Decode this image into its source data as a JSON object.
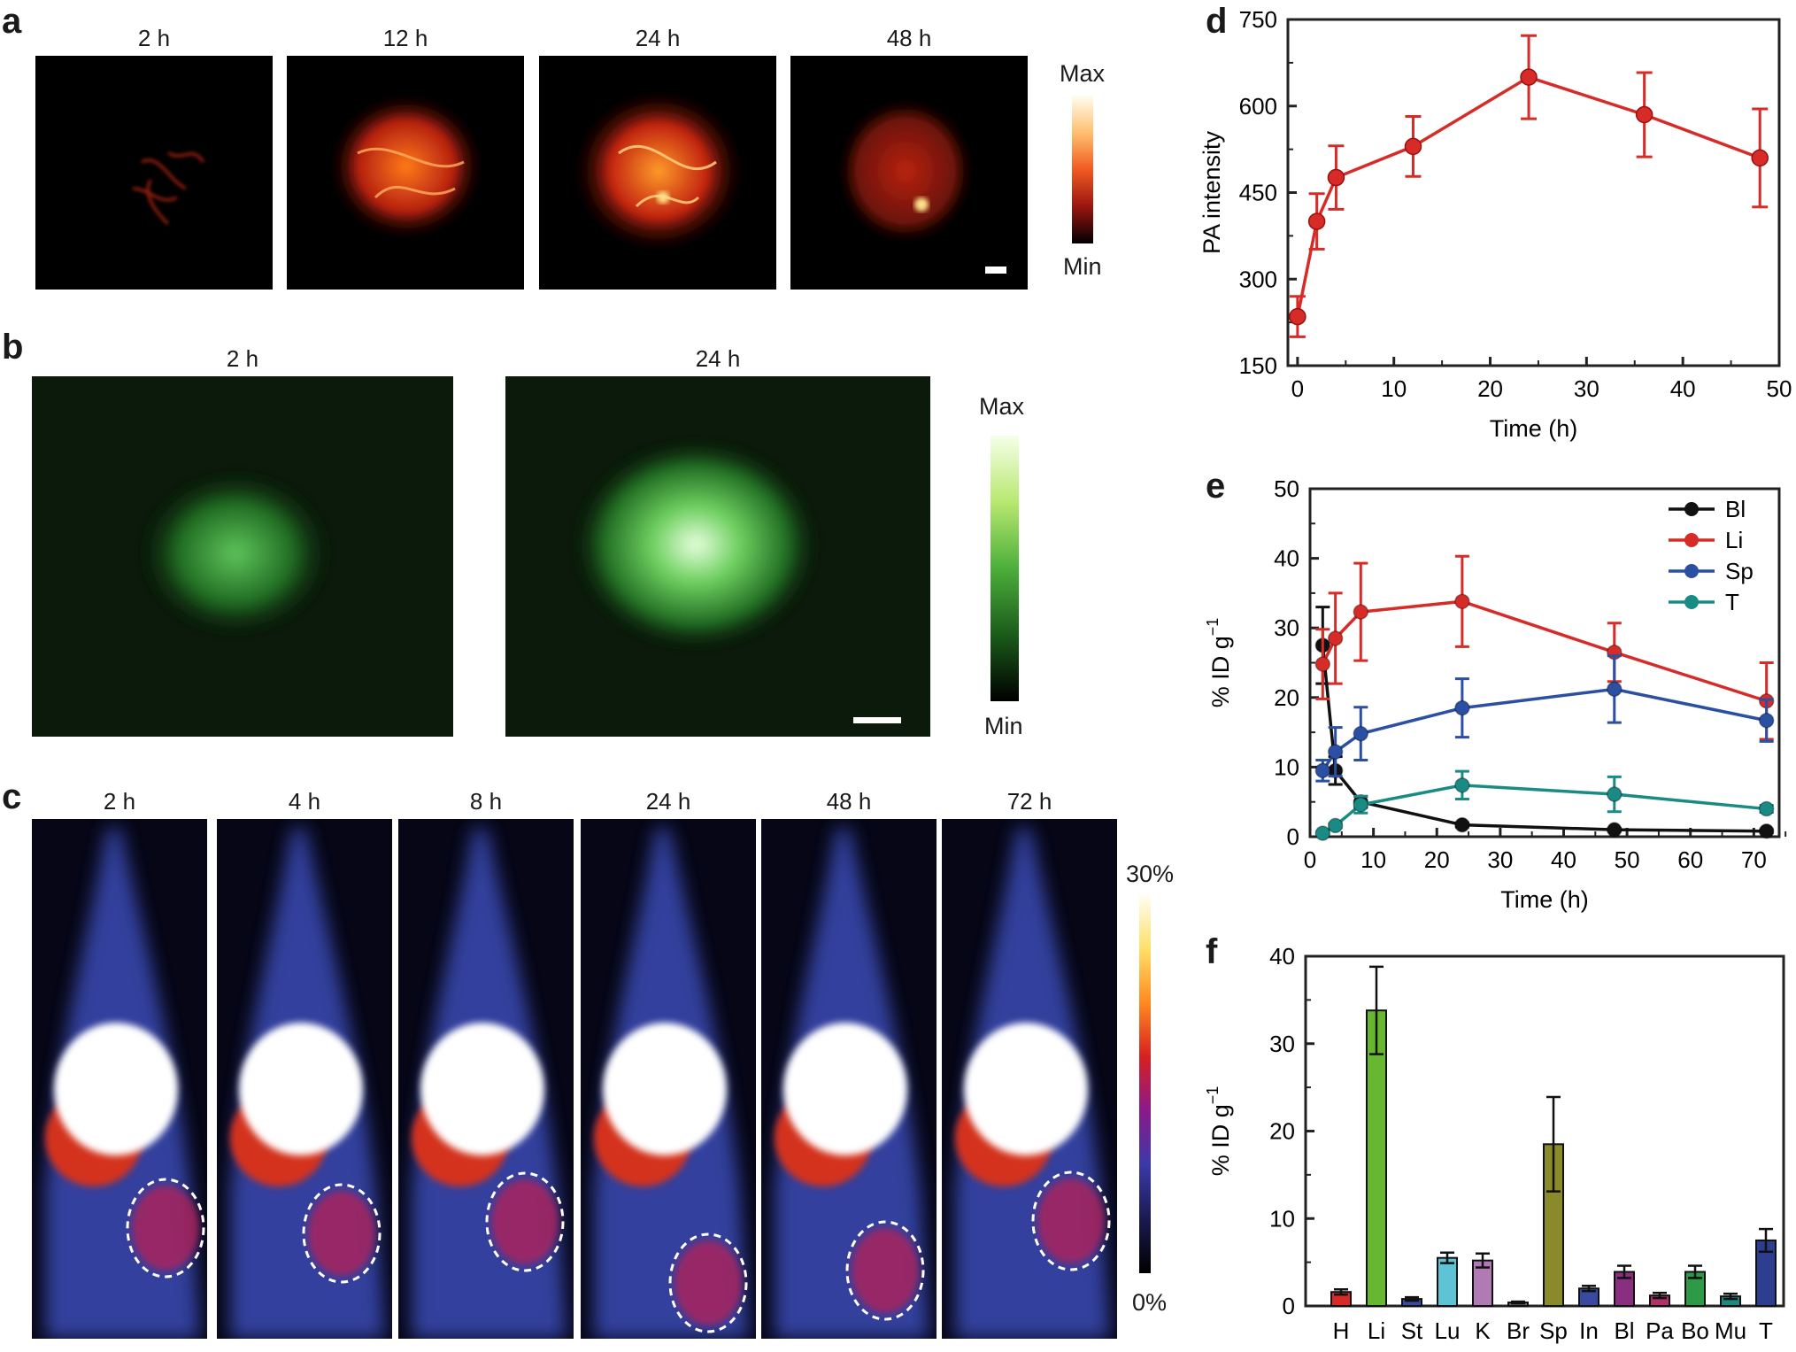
{
  "panel_a": {
    "letter": "a",
    "times": [
      "2 h",
      "12 h",
      "24 h",
      "48 h"
    ],
    "colorbar": {
      "max": "Max",
      "min": "Min"
    }
  },
  "panel_b": {
    "letter": "b",
    "times": [
      "2 h",
      "24 h"
    ],
    "colorbar": {
      "max": "Max",
      "min": "Min"
    }
  },
  "panel_c": {
    "letter": "c",
    "times": [
      "2 h",
      "4 h",
      "8 h",
      "24 h",
      "48 h",
      "72 h"
    ],
    "colorbar": {
      "max": "30%",
      "min": "0%"
    }
  },
  "chart_data": [
    {
      "panel": "d",
      "type": "line",
      "xlabel": "Time (h)",
      "ylabel": "PA intensity",
      "xlim": [
        -1,
        50
      ],
      "ylim": [
        150,
        750
      ],
      "xticks": [
        0,
        10,
        20,
        30,
        40,
        50
      ],
      "yticks": [
        150,
        300,
        450,
        600,
        750
      ],
      "color": "#d62b27",
      "x": [
        0,
        2,
        4,
        12,
        24,
        36,
        48
      ],
      "y": [
        235,
        400,
        476,
        530,
        650,
        585,
        510
      ],
      "err": [
        35,
        48,
        55,
        52,
        72,
        73,
        85
      ]
    },
    {
      "panel": "e",
      "type": "line",
      "xlabel": "Time (h)",
      "ylabel": "% ID g",
      "ylabel_sup": "−1",
      "xlim": [
        0,
        74
      ],
      "ylim": [
        0,
        50
      ],
      "xticks": [
        0,
        10,
        20,
        30,
        40,
        50,
        60,
        70
      ],
      "yticks": [
        0,
        10,
        20,
        30,
        40,
        50
      ],
      "legend_position": "top-right",
      "series": [
        {
          "name": "Bl",
          "color": "#111111",
          "x": [
            2,
            4,
            8,
            24,
            48,
            72
          ],
          "y": [
            27.5,
            9.5,
            5.0,
            1.7,
            1.0,
            0.8
          ],
          "err": [
            5.5,
            2.0,
            0.8,
            0.3,
            0.2,
            0.2
          ]
        },
        {
          "name": "Li",
          "color": "#d62b27",
          "x": [
            2,
            4,
            8,
            24,
            48,
            72
          ],
          "y": [
            24.8,
            28.5,
            32.3,
            33.8,
            26.5,
            19.5
          ],
          "err": [
            5.0,
            6.5,
            7.0,
            6.5,
            4.2,
            5.5
          ]
        },
        {
          "name": "Sp",
          "color": "#2a4fa3",
          "x": [
            2,
            4,
            8,
            24,
            48,
            72
          ],
          "y": [
            9.5,
            12.2,
            14.8,
            18.5,
            21.2,
            16.7
          ],
          "err": [
            1.5,
            3.5,
            3.8,
            4.2,
            4.8,
            3.0
          ]
        },
        {
          "name": "T",
          "color": "#1a8a85",
          "x": [
            2,
            4,
            8,
            24,
            48,
            72
          ],
          "y": [
            0.5,
            1.6,
            4.6,
            7.4,
            6.1,
            4.0
          ],
          "err": [
            0.2,
            0.3,
            1.2,
            2.0,
            2.5,
            0.5
          ]
        }
      ]
    },
    {
      "panel": "f",
      "type": "bar",
      "ylabel": "% ID g",
      "ylabel_sup": "−1",
      "ylim": [
        0,
        40
      ],
      "yticks": [
        0,
        10,
        20,
        30,
        40
      ],
      "categories": [
        "H",
        "Li",
        "St",
        "Lu",
        "K",
        "Br",
        "Sp",
        "In",
        "Bl",
        "Pa",
        "Bo",
        "Mu",
        "T"
      ],
      "values": [
        1.6,
        33.8,
        0.8,
        5.5,
        5.2,
        0.4,
        18.5,
        2.0,
        3.9,
        1.2,
        3.9,
        1.1,
        7.5
      ],
      "errors": [
        0.3,
        5.0,
        0.2,
        0.6,
        0.8,
        0.1,
        5.4,
        0.3,
        0.7,
        0.3,
        0.7,
        0.3,
        1.3
      ],
      "colors": [
        "#d62b27",
        "#67b830",
        "#3a4aa0",
        "#5fc3d6",
        "#b07bb5",
        "#6b6b6b",
        "#8a8a2a",
        "#3a4aa0",
        "#8a2f7f",
        "#b0326a",
        "#2c9a46",
        "#1d8a7e",
        "#2d3e90"
      ]
    }
  ]
}
